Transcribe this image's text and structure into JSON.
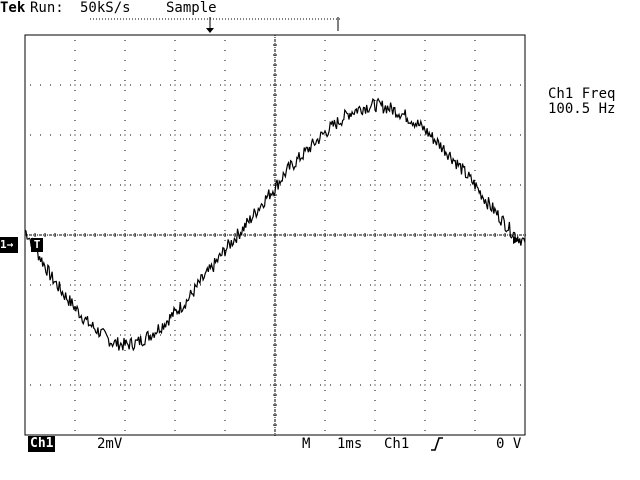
{
  "header": {
    "brand": "Tek",
    "run_label": "Run:",
    "sample_rate": "50kS/s",
    "acq_mode": "Sample"
  },
  "measurement": {
    "label": "Ch1 Freq",
    "value": "100.5 Hz"
  },
  "markers": {
    "channel_marker": "1→",
    "trigger_marker": "T"
  },
  "footer": {
    "channel": "Ch1",
    "volts_per_div": "2mV",
    "timebase_label": "M",
    "time_per_div": "1ms",
    "trigger_source": "Ch1",
    "trigger_slope_icon": "rising-edge-icon",
    "trigger_level": "0 V"
  },
  "display": {
    "grid_divisions_x": 10,
    "grid_divisions_y": 8,
    "trace_color": "#000000",
    "background_color": "#ffffff"
  },
  "chart_data": {
    "type": "line",
    "title": "",
    "xlabel": "",
    "ylabel": "",
    "x_unit": "ms",
    "y_unit": "mV",
    "xlim": [
      0,
      10
    ],
    "ylim": [
      -8,
      8
    ],
    "series": [
      {
        "x": [
          0,
          0.25,
          0.5,
          0.75,
          1,
          1.25,
          1.5,
          1.75,
          2,
          2.25,
          2.5,
          2.75,
          3,
          3.25,
          3.5,
          3.75,
          4,
          4.25,
          4.5,
          4.75,
          5,
          5.25,
          5.5,
          5.75,
          6,
          6.25,
          6.5,
          6.75,
          7,
          7.25,
          7.5,
          7.75,
          8,
          8.25,
          8.5,
          8.75,
          9,
          9.25,
          9.5,
          9.75,
          10
        ],
        "values": [
          0.2,
          -0.7,
          -1.6,
          -2.3,
          -2.9,
          -3.5,
          -3.9,
          -4.3,
          -4.4,
          -4.3,
          -4.0,
          -3.6,
          -3.1,
          -2.6,
          -1.9,
          -1.3,
          -0.6,
          0.0,
          0.6,
          1.3,
          1.9,
          2.6,
          3.1,
          3.6,
          4.1,
          4.5,
          4.9,
          5.1,
          5.2,
          5.1,
          4.9,
          4.6,
          4.2,
          3.7,
          3.2,
          2.6,
          2.0,
          1.3,
          0.7,
          0.1,
          -0.3
        ]
      }
    ]
  }
}
